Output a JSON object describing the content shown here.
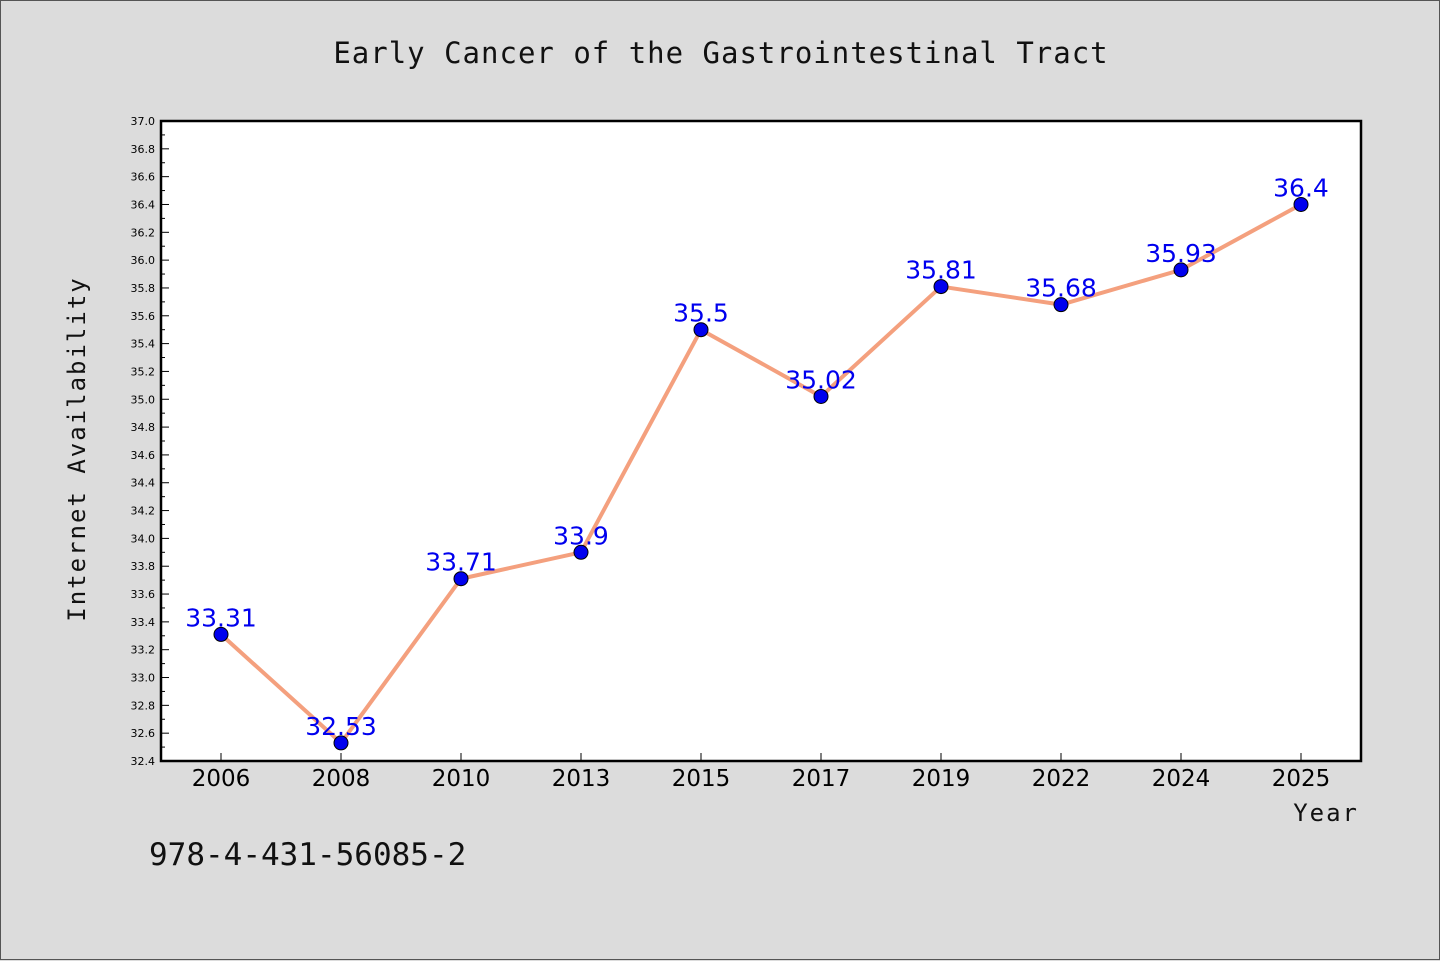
{
  "chart_data": {
    "type": "line",
    "title": "Early Cancer of the Gastrointestinal Tract",
    "xlabel": "Year",
    "ylabel": "Internet Availability",
    "categories": [
      "2006",
      "2008",
      "2010",
      "2013",
      "2015",
      "2017",
      "2019",
      "2022",
      "2024",
      "2025"
    ],
    "series": [
      {
        "values": [
          33.31,
          32.53,
          33.71,
          33.9,
          35.5,
          35.02,
          35.81,
          35.68,
          35.93,
          36.4
        ],
        "line_color": "#f4a07e",
        "marker_color": "#0000ee"
      }
    ],
    "data_labels": [
      "33.31",
      "32.53",
      "33.71",
      "33.9",
      "35.5",
      "35.02",
      "35.81",
      "35.68",
      "35.93",
      "36.4"
    ],
    "ylim": [
      32.4,
      37.0
    ],
    "y_tick_step": 0.2,
    "grid": false,
    "legend": "none",
    "footnote": "978-4-431-56085-2"
  }
}
